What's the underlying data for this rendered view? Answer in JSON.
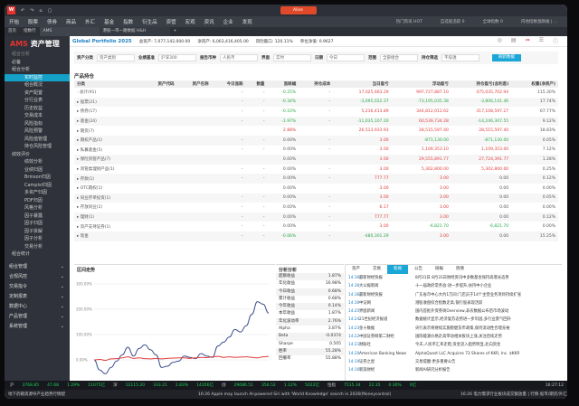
{
  "title_bar": {
    "user": "Alice"
  },
  "menu": [
    "开始",
    "股票",
    "债券",
    "商品",
    "外汇",
    "基金",
    "指数",
    "衍生品",
    "资管",
    "宏观",
    "资讯",
    "企业",
    "发现"
  ],
  "menu_right": [
    "热门资讯 HOT",
    "自选股追踪 0",
    "全球指数 0",
    "内地指数涨跌幅 | ..."
  ],
  "tabs": [
    "首页",
    "指数行",
    "AMS",
    "港股一带一路数据 H&H"
  ],
  "sidebar": {
    "logo_a": "AMS",
    "logo_b": "资产管理",
    "search": "组合分析",
    "items": [
      {
        "label": "必备",
        "grp": true
      },
      {
        "label": "组合分析",
        "grp": true
      },
      {
        "label": "实时监控",
        "active": true
      },
      {
        "label": "组合概况"
      },
      {
        "label": "资产配置"
      },
      {
        "label": "分行业表"
      },
      {
        "label": "历史收益"
      },
      {
        "label": "交易成本"
      },
      {
        "label": "风险指标"
      },
      {
        "label": "风险预警"
      },
      {
        "label": "风险值管理"
      },
      {
        "label": "持仓风险管理"
      },
      {
        "label": "绩效评价",
        "grp": true
      },
      {
        "label": "绩效分析"
      },
      {
        "label": "业绩归因"
      },
      {
        "label": "Brinson归因"
      },
      {
        "label": "Campisi归因"
      },
      {
        "label": "多资产归因"
      },
      {
        "label": "PDF归因"
      },
      {
        "label": "风格分析"
      },
      {
        "label": "因子暴露"
      },
      {
        "label": "因子归因"
      },
      {
        "label": "因子拆解"
      },
      {
        "label": "因子分析"
      },
      {
        "label": "交易分析"
      },
      {
        "label": "组合统计",
        "grp": true
      }
    ],
    "sections": [
      "组合管理",
      "合规风控",
      "交易指令",
      "定制报表",
      "数据中心",
      "产品管理",
      "系统管理"
    ]
  },
  "header": {
    "portfolio": "Global Portfolio 2025",
    "total_assets": "总资产: 7,077,142,000.00",
    "net_assets": "净资产: 6,063,416,405.00",
    "risk_exposure": "风险敞口: 120.11%",
    "unit_nav": "单位净值: 0.9627"
  },
  "filters": [
    {
      "label": "资产分类",
      "value": "资产类别"
    },
    {
      "label": "业绩基准",
      "value": "沪深300"
    },
    {
      "label": "报告币种",
      "value": "人民币"
    },
    {
      "label": "界面",
      "value": "实时"
    },
    {
      "label": "日期",
      "value": "今日"
    },
    {
      "label": "范围",
      "value": "全部组合"
    },
    {
      "label": "持仓筛选",
      "value": "不穿透"
    }
  ],
  "filter_button": "刷新数据",
  "holdings": {
    "title": "产品持仓",
    "columns": [
      "分类",
      "资产代码",
      "资产名称",
      "今日涨跌",
      "数量",
      "涨跌幅",
      "持仓成本",
      "当日盈亏",
      "浮动盈亏",
      "持仓盈亏(含利息)",
      "权重(净资产)"
    ],
    "rows": [
      [
        "- 总计(91)",
        "",
        "",
        "-",
        "-",
        "-0.25%",
        "-",
        "17,025,663.29",
        "997,727,887.10",
        "475,035,702.94",
        "115.30%"
      ],
      [
        "▸ 股票(21)",
        "",
        "",
        "-",
        "-",
        "-0.34%",
        "-",
        "-3,095,022.37",
        "-73,195,035.38",
        "-3,806,141.46",
        "17.74%"
      ],
      [
        "▸ 债券(17)",
        "",
        "",
        "-",
        "-",
        "-0.10%",
        "-",
        "5,216,413.89",
        "344,812,012.62",
        "317,108,597.27",
        "67.77%"
      ],
      [
        "▸ 基金(24)",
        "",
        "",
        "-",
        "-",
        "-1.97%",
        "-",
        "-11,035,107.20",
        "60,539,734.28",
        "-14,246,307.55",
        "9.12%"
      ],
      [
        "▸ 期货(7)",
        "",
        "",
        "",
        "",
        "2.88%",
        "",
        "26,513,933.93",
        "28,515,597.40",
        "28,515,597.40",
        "18.83%"
      ],
      [
        "▸ 期权产品(1)",
        "",
        "",
        "-",
        "-",
        "0.00%",
        "-",
        "3.00",
        "-871,130.00",
        "-871,130.00",
        "0.05%"
      ],
      [
        "▸ 私募基金(5)",
        "",
        "",
        "-",
        "-",
        "0.00%",
        "-",
        "3.00",
        "1,109,353.10",
        "1,109,353.00",
        "7.12%"
      ],
      [
        "▸ 保险资管产品(7)",
        "",
        "",
        "",
        "",
        "0.00%",
        "",
        "3.00",
        "29,555,891.77",
        "27,724,391.77",
        "1.28%"
      ],
      [
        "▸ 资管类理财产品(1)",
        "",
        "",
        "-",
        "-",
        "0.00%",
        "-",
        "3.00",
        "5,302,800.00",
        "5,302,800.00",
        "0.25%"
      ],
      [
        "▸ 存款(1)",
        "",
        "",
        "-",
        "-",
        "0.00%",
        "-",
        "777.77",
        "3.00",
        "0.00",
        "0.12%"
      ],
      [
        "▸ OTC期权(1)",
        "",
        "",
        "",
        "",
        "0.00%",
        "",
        "3.00",
        "3.00",
        "0.00",
        "0.00%"
      ],
      [
        "▸ 同业存单投资(1)",
        "",
        "",
        "-",
        "-",
        "0.00%",
        "-",
        "3.00",
        "3.00",
        "0.00",
        "0.05%"
      ],
      [
        "▸ 存放同业(1)",
        "",
        "",
        "-",
        "-",
        "0.00%",
        "-",
        "6.17",
        "3.00",
        "0.00",
        "0.00%"
      ],
      [
        "▸ 理财(1)",
        "",
        "",
        "-",
        "-",
        "0.00%",
        "-",
        "777.77",
        "3.00",
        "0.00",
        "0.12%"
      ],
      [
        "▸ 资产支持证券(1)",
        "",
        "",
        "-",
        "-",
        "0.00%",
        "-",
        "3.00",
        "-6,821.70",
        "-6,821.70",
        "0.00%"
      ],
      [
        "▸ 现金",
        "",
        "",
        "-",
        "-",
        "-0.06%",
        "-",
        "-480,301.29",
        "3.00",
        "0.00",
        "15.25%"
      ]
    ]
  },
  "chart_panel": {
    "title": "区间走势",
    "chart_data": {
      "type": "line",
      "yticks": [
        "300.00%",
        "200.00%",
        "100.00%",
        "0.00%"
      ],
      "ylim": [
        -60,
        300
      ],
      "series": [
        {
          "color": "#3b4f8c",
          "values": [
            0,
            -40,
            -55,
            -30,
            -5,
            20,
            50,
            15,
            45,
            60,
            40,
            20,
            -30,
            -25,
            -10,
            -5,
            15,
            10,
            5,
            25,
            15,
            10,
            55,
            70,
            90,
            120,
            110,
            135,
            180,
            230,
            220,
            185
          ]
        },
        {
          "color": "#e03c3c",
          "values": [
            0,
            2,
            -2,
            4,
            5,
            8,
            12,
            6,
            8,
            5,
            4,
            6,
            4,
            6,
            7,
            8,
            8,
            6,
            8,
            10,
            9,
            12,
            14,
            10,
            12,
            10,
            11,
            12,
            10,
            8,
            12,
            14
          ]
        }
      ]
    }
  },
  "stats": {
    "title": "分析分析",
    "items": [
      [
        "超额收益",
        "1.87%"
      ],
      [
        "年化收益",
        "16.98%"
      ],
      [
        "今日收益",
        "0.68%"
      ],
      [
        "累计收益",
        "0.68%"
      ],
      [
        "今年收益",
        "0.14%"
      ],
      [
        "本年收益",
        "1.87%"
      ],
      [
        "年化波动率",
        "2.76%"
      ],
      [
        "Alpha",
        "3.87%"
      ],
      [
        "Beta",
        "-0.0374"
      ],
      [
        "Sharpe",
        "0.505"
      ],
      [
        "胜率",
        "55.28%"
      ],
      [
        "回撤率",
        "55.88%"
      ]
    ]
  },
  "news": {
    "tabs": [
      "资产",
      "交易",
      "新闻",
      "公告",
      "研报",
      "舆情"
    ],
    "active": 2,
    "items": [
      [
        "14:36",
        "最新财经快报",
        "8月31日 8月31日财经资讯中多数基金保持高增长态势"
      ],
      [
        "14:36",
        "大公报新闻",
        "十一届政府常务会:进一步提升,扶持中小企业"
      ],
      [
        "14:36",
        "最新财经快报",
        "广东省市中心大约1万间:门店员于14个主营业务项目持续扩张"
      ],
      [
        "14:30",
        "中证网",
        "港股收盘综合指数走高,银行股表现活跃"
      ],
      [
        "14:25",
        "界面新闻",
        "国内首批外资券商Overview,非农数据公布后市场波动"
      ],
      [
        "14:24",
        "21世纪经济报道",
        "数据统计显示,经济复苏态势进一步巩固,多行业景气回升"
      ],
      [
        "14:23",
        "金十数据",
        "央行表示将继续实施稳健货币政策,保持流动性合理充裕"
      ],
      [
        "14:22",
        "中国证券网第二财经",
        "国际能源价格走高带动相关板块上涨,关注后续走势"
      ],
      [
        "14:21",
        "财联社",
        "今天,人民币汇率走稳,资金流入趋势明显,北向资金"
      ],
      [
        "14:20",
        "American Banking News",
        "AlphaQuest LLC Acquires 73 Shares of KKR, Inc. $KKR"
      ],
      [
        "14:19",
        "证券之星",
        "交易提醒:更多重要公告"
      ],
      [
        "14:16",
        "新浪财经",
        "新闻AI研究分析报告"
      ]
    ]
  },
  "ticker": [
    {
      "name": "沪",
      "vals": [
        "3768.85",
        "47.68",
        "1.29%",
        "11075亿"
      ]
    },
    {
      "name": "深",
      "vals": [
        "12115.20",
        "333.21",
        "2.83%",
        "14356亿"
      ]
    },
    {
      "name": "创",
      "vals": [
        "29086.51",
        "356.52",
        "1.12%",
        "5022亿"
      ]
    },
    {
      "name": "恒指",
      "vals": [
        "7515.34",
        "22.35",
        "0.30%",
        "0亿"
      ]
    }
  ],
  "clock": "16:27:12",
  "bottom": {
    "left": "地下药箱资源导产业趋势行情配",
    "center": "16:26 Apple may launch AI-powered Siri with 'World Knowledge' search in 2026(Moneycontrol)",
    "right": "16:26 电力需求行业板块成交额放量 | 行情·股市/期货/外汇"
  }
}
